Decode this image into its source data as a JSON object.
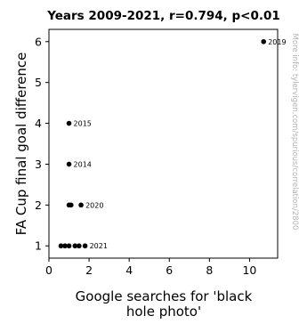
{
  "chart_data": {
    "type": "scatter",
    "title": "Years 2009-2021, r=0.794, p<0.01",
    "xlabel": "Google searches for 'black hole photo'",
    "xlabel_lines": [
      "Google searches for 'black",
      "hole photo'"
    ],
    "ylabel": "FA Cup final goal difference",
    "xlim": [
      0,
      11.4
    ],
    "ylim": [
      0.7,
      6.3
    ],
    "xticks": [
      0,
      2,
      4,
      6,
      8,
      10
    ],
    "yticks": [
      1,
      2,
      3,
      4,
      5,
      6
    ],
    "grid": false,
    "points": [
      {
        "x": 0.6,
        "y": 1,
        "label": ""
      },
      {
        "x": 0.8,
        "y": 1,
        "label": ""
      },
      {
        "x": 1.0,
        "y": 1,
        "label": ""
      },
      {
        "x": 1.3,
        "y": 1,
        "label": ""
      },
      {
        "x": 1.5,
        "y": 1,
        "label": ""
      },
      {
        "x": 1.8,
        "y": 1,
        "label": "2021"
      },
      {
        "x": 1.0,
        "y": 2,
        "label": ""
      },
      {
        "x": 1.1,
        "y": 2,
        "label": ""
      },
      {
        "x": 1.6,
        "y": 2,
        "label": "2020"
      },
      {
        "x": 1.0,
        "y": 3,
        "label": "2014"
      },
      {
        "x": 1.0,
        "y": 4,
        "label": "2015"
      },
      {
        "x": 10.7,
        "y": 6,
        "label": "2019"
      }
    ],
    "watermark": "More info: tylervigen.com/spurious/correlation/2800"
  }
}
